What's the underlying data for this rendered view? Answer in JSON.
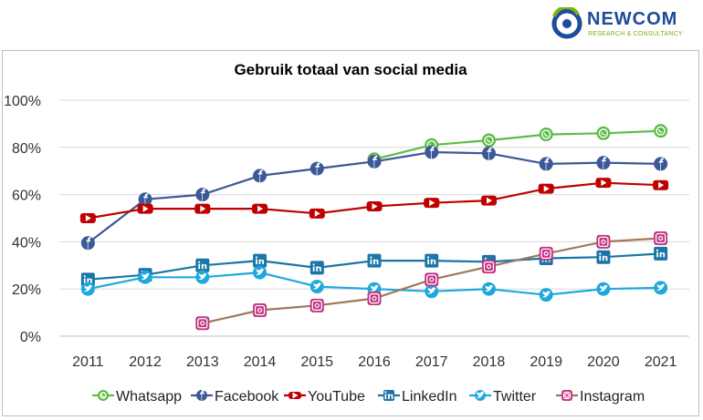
{
  "brand": {
    "name": "NEWCOM",
    "tagline": "RESEARCH & CONSULTANCY",
    "colors": {
      "primary": "#1f4b99",
      "accent": "#7ab317"
    }
  },
  "chart_data": {
    "type": "line",
    "title": "Gebruik totaal van social media",
    "xlabel": "",
    "ylabel": "",
    "categories": [
      "2011",
      "2012",
      "2013",
      "2014",
      "2015",
      "2016",
      "2017",
      "2018",
      "2019",
      "2020",
      "2021"
    ],
    "ylim": [
      0,
      100
    ],
    "yticks": [
      0,
      20,
      40,
      60,
      80,
      100
    ],
    "ytick_labels": [
      "0%",
      "20%",
      "40%",
      "60%",
      "80%",
      "100%"
    ],
    "grid": "horizontal",
    "legend_position": "bottom",
    "series": [
      {
        "name": "Whatsapp",
        "color": "#5dbb46",
        "icon": "whatsapp-icon",
        "values": [
          null,
          null,
          null,
          null,
          null,
          75,
          81,
          83,
          85.5,
          86,
          87
        ]
      },
      {
        "name": "Facebook",
        "color": "#3b5998",
        "icon": "facebook-icon",
        "values": [
          39.5,
          58,
          60,
          68,
          71,
          74,
          78,
          77.5,
          73,
          73.5,
          73
        ]
      },
      {
        "name": "YouTube",
        "color": "#c00000",
        "icon": "youtube-icon",
        "values": [
          50,
          54,
          54,
          54,
          52,
          55,
          56.5,
          57.5,
          62.5,
          65,
          64
        ]
      },
      {
        "name": "LinkedIn",
        "color": "#1a75a8",
        "icon": "linkedin-icon",
        "values": [
          24,
          26,
          30,
          32,
          29,
          32,
          32,
          31.5,
          33,
          33.5,
          35
        ]
      },
      {
        "name": "Twitter",
        "color": "#1fa8dd",
        "icon": "twitter-icon",
        "values": [
          20,
          25,
          25,
          27,
          21,
          20,
          19,
          20,
          17.5,
          20,
          20.5
        ]
      },
      {
        "name": "Instagram",
        "color": "#a0785a",
        "icon": "instagram-icon",
        "values": [
          null,
          null,
          5.5,
          11,
          13,
          16,
          24,
          29.5,
          35,
          40,
          41.5
        ]
      }
    ]
  }
}
